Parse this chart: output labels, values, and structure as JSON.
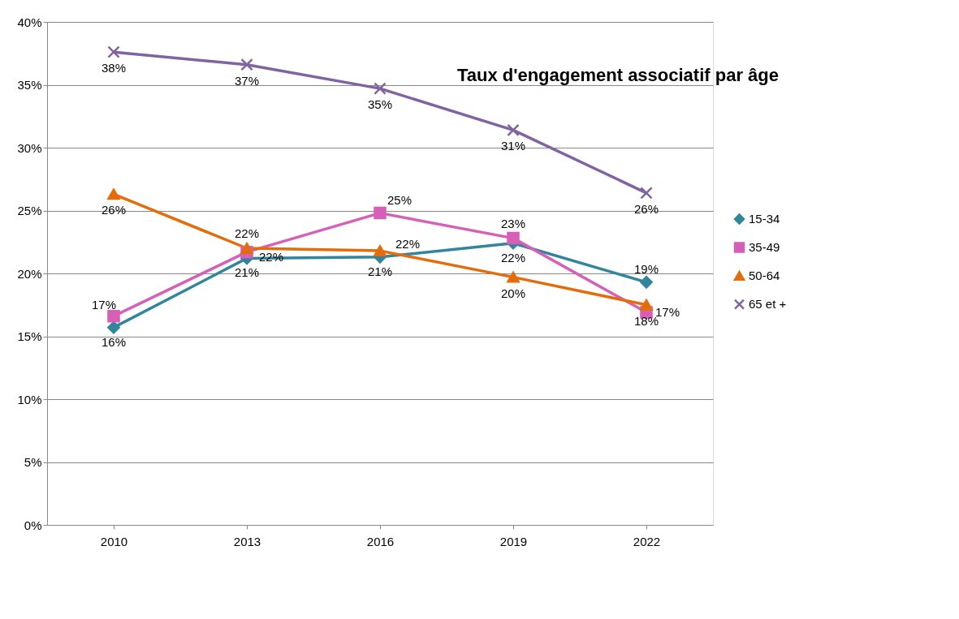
{
  "chart_data": {
    "type": "line",
    "title": "Taux d'engagement associatif par âge",
    "categories": [
      "2010",
      "2013",
      "2016",
      "2019",
      "2022"
    ],
    "series": [
      {
        "name": "15-34",
        "color": "#31859c",
        "marker": "diamond",
        "values": [
          15.7,
          21.2,
          21.3,
          22.4,
          19.3
        ],
        "value_labels": [
          "16%",
          "21%",
          "21%",
          "22%",
          "19%"
        ]
      },
      {
        "name": "35-49",
        "color": "#d660b8",
        "marker": "square",
        "values": [
          16.6,
          21.7,
          24.8,
          22.8,
          16.9
        ],
        "value_labels": [
          "17%",
          "22%",
          "25%",
          "23%",
          "17%"
        ]
      },
      {
        "name": "50-64",
        "color": "#e46c0a",
        "marker": "triangle",
        "values": [
          26.3,
          22.0,
          21.8,
          19.7,
          17.5
        ],
        "value_labels": [
          "26%",
          "22%",
          "22%",
          "20%",
          "18%"
        ]
      },
      {
        "name": "65 et +",
        "color": "#8064a2",
        "marker": "cross",
        "values": [
          37.6,
          36.6,
          34.7,
          31.4,
          26.4
        ],
        "value_labels": [
          "38%",
          "37%",
          "35%",
          "31%",
          "26%"
        ]
      }
    ],
    "ylim": [
      0,
      40
    ],
    "yticks": [
      {
        "value": 0,
        "label": "0%"
      },
      {
        "value": 5,
        "label": "5%"
      },
      {
        "value": 10,
        "label": "10%"
      },
      {
        "value": 15,
        "label": "15%"
      },
      {
        "value": 20,
        "label": "20%"
      },
      {
        "value": 25,
        "label": "25%"
      },
      {
        "value": 30,
        "label": "30%"
      },
      {
        "value": 35,
        "label": "35%"
      },
      {
        "value": 40,
        "label": "40%"
      }
    ],
    "grid": "y",
    "legend": "right",
    "line_style": "solid"
  }
}
